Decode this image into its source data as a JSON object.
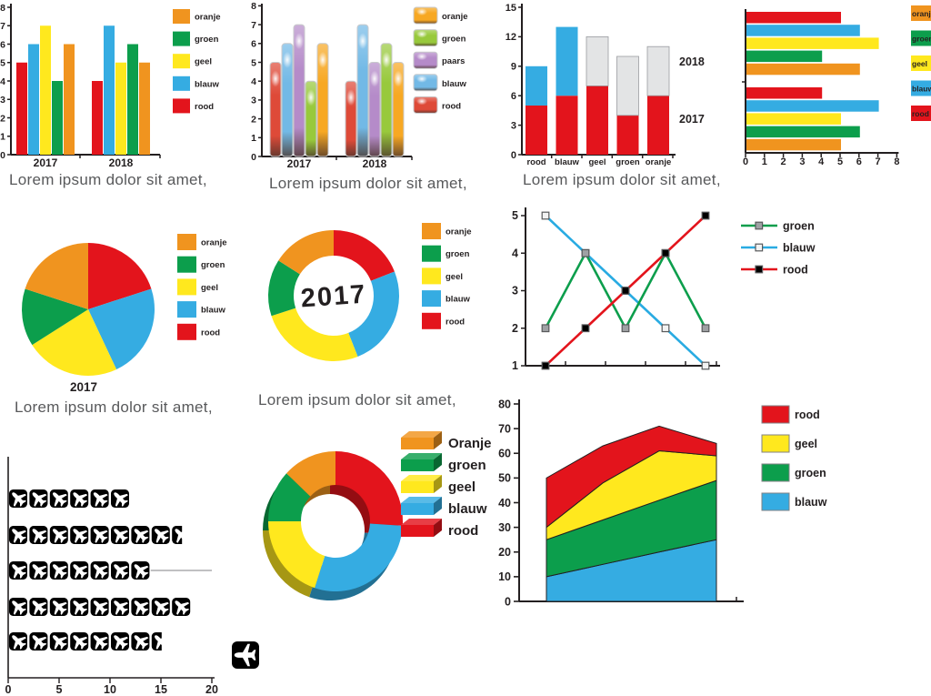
{
  "palette": {
    "oranje": "#F0941F",
    "groen": "#0C9E4C",
    "geel": "#FFE81E",
    "blauw": "#35ACE2",
    "rood": "#E3141C",
    "paars": "#B58BC9",
    "grijs": "#E3E4E5"
  },
  "glossy_palette": {
    "oranje": "#F7A823",
    "groen": "#98C93C",
    "paars": "#B58BC9",
    "blauw": "#72B9E6",
    "rood": "#DE4A38",
    "shadow": "#4A342B"
  },
  "text_colors": {
    "axis": "#231F20",
    "caption": "#58595B"
  },
  "chart_data": [
    {
      "id": "grouped-bar",
      "type": "bar",
      "groups": [
        "2017",
        "2018"
      ],
      "bar_order": [
        "rood",
        "blauw",
        "geel",
        "groen",
        "oranje"
      ],
      "values": {
        "2017": [
          5,
          6,
          7,
          4,
          6
        ],
        "2018": [
          4,
          7,
          5,
          6,
          5
        ]
      },
      "ylim": [
        0,
        8
      ],
      "yticks": [
        0,
        1,
        2,
        3,
        4,
        5,
        6,
        7,
        8
      ],
      "legend": [
        "oranje",
        "groen",
        "geel",
        "blauw",
        "rood"
      ],
      "caption": "Lorem ipsum dolor sit amet,"
    },
    {
      "id": "glossy-bar",
      "type": "bar",
      "style": "glossy",
      "groups": [
        "2017",
        "2018"
      ],
      "bar_order": [
        "rood",
        "blauw",
        "paars",
        "groen",
        "oranje"
      ],
      "values": {
        "2017": [
          5,
          6,
          7,
          4,
          6
        ],
        "2018": [
          4,
          7,
          5,
          6,
          5
        ]
      },
      "ylim": [
        0,
        8
      ],
      "yticks": [
        0,
        1,
        2,
        3,
        4,
        5,
        6,
        7,
        8
      ],
      "legend": [
        "oranje",
        "groen",
        "paars",
        "blauw",
        "rood"
      ],
      "caption": "Lorem ipsum dolor sit amet,"
    },
    {
      "id": "stacked-bar",
      "type": "stacked-bar",
      "categories": [
        "rood",
        "blauw",
        "geel",
        "groen",
        "oranje"
      ],
      "series": [
        {
          "name": "2017",
          "colors": [
            "rood",
            "rood",
            "rood",
            "rood",
            "rood"
          ],
          "values": [
            5,
            6,
            7,
            4,
            6
          ]
        },
        {
          "name": "2018",
          "colors": [
            "blauw",
            "blauw",
            "grijs",
            "grijs",
            "grijs"
          ],
          "values": [
            4,
            7,
            5,
            6,
            5
          ]
        }
      ],
      "ylim": [
        0,
        15
      ],
      "yticks": [
        0,
        3,
        6,
        9,
        12,
        15
      ],
      "right_labels": [
        "2018",
        "2017"
      ],
      "caption": "Lorem ipsum dolor sit amet,"
    },
    {
      "id": "horizontal-bar",
      "type": "bar-horizontal",
      "row_order": [
        "rood",
        "blauw",
        "geel",
        "groen",
        "oranje"
      ],
      "groups": [
        [
          5,
          6,
          7,
          4,
          6
        ],
        [
          4,
          7,
          5,
          6,
          5
        ]
      ],
      "xlim": [
        0,
        8
      ],
      "xticks": [
        0,
        1,
        2,
        3,
        4,
        5,
        6,
        7,
        8
      ],
      "legend": [
        "oranje",
        "groen",
        "geel",
        "blauw",
        "rood"
      ]
    },
    {
      "id": "pie",
      "type": "pie",
      "labels": [
        "rood",
        "blauw",
        "geel",
        "groen",
        "oranje"
      ],
      "values": [
        20,
        23,
        23,
        14,
        20
      ],
      "year_label": "2017",
      "legend": [
        "oranje",
        "groen",
        "geel",
        "blauw",
        "rood"
      ],
      "caption": "Lorem ipsum dolor sit amet,"
    },
    {
      "id": "donut",
      "type": "donut",
      "labels": [
        "rood",
        "blauw",
        "geel",
        "groen",
        "oranje"
      ],
      "values": [
        19,
        25,
        26,
        14,
        16
      ],
      "center_label": "2017",
      "legend": [
        "oranje",
        "groen",
        "geel",
        "blauw",
        "rood"
      ],
      "caption": "Lorem ipsum dolor sit amet,"
    },
    {
      "id": "line",
      "type": "line",
      "x": [
        1,
        2,
        3,
        4,
        5
      ],
      "ylim": [
        1,
        5
      ],
      "yticks": [
        1,
        2,
        3,
        4,
        5
      ],
      "series": [
        {
          "name": "blauw",
          "values": [
            5,
            4,
            3,
            2,
            1
          ],
          "marker_fill": "#F2F2F2"
        },
        {
          "name": "groen",
          "values": [
            2,
            4,
            2,
            4,
            2
          ],
          "marker_fill": "#9FA1A4"
        },
        {
          "name": "rood",
          "values": [
            1,
            2,
            3,
            4,
            5
          ],
          "marker_fill": "#000000"
        }
      ],
      "legend": [
        "groen",
        "blauw",
        "rood"
      ]
    },
    {
      "id": "pictogram",
      "type": "pictogram",
      "icon": "airplane",
      "unit_per_icon": 2,
      "values": [
        12,
        17,
        14,
        18,
        15
      ],
      "xlim": [
        0,
        20
      ],
      "xticks": [
        0,
        5,
        10,
        15,
        20
      ],
      "reference_line": {
        "row": 3,
        "to": 20
      }
    },
    {
      "id": "donut-3d",
      "type": "donut-3d",
      "labels": [
        "rood",
        "blauw",
        "geel",
        "groen",
        "oranje"
      ],
      "values": [
        26,
        29,
        20,
        12,
        13
      ],
      "legend": [
        "Oranje",
        "groen",
        "geel",
        "blauw",
        "rood"
      ],
      "legend_keys": [
        "oranje",
        "groen",
        "geel",
        "blauw",
        "rood"
      ]
    },
    {
      "id": "area",
      "type": "area-stacked",
      "x": [
        1,
        2,
        3,
        4
      ],
      "ylim": [
        0,
        80
      ],
      "yticks": [
        0,
        10,
        20,
        30,
        40,
        50,
        60,
        70,
        80
      ],
      "series": [
        {
          "name": "blauw",
          "values": [
            10,
            15,
            20,
            25
          ]
        },
        {
          "name": "groen",
          "values": [
            15,
            18,
            21,
            24
          ]
        },
        {
          "name": "geel",
          "values": [
            5,
            15,
            20,
            10
          ]
        },
        {
          "name": "rood",
          "values": [
            20,
            15,
            10,
            5
          ]
        }
      ],
      "legend": [
        "rood",
        "geel",
        "groen",
        "blauw"
      ]
    }
  ]
}
